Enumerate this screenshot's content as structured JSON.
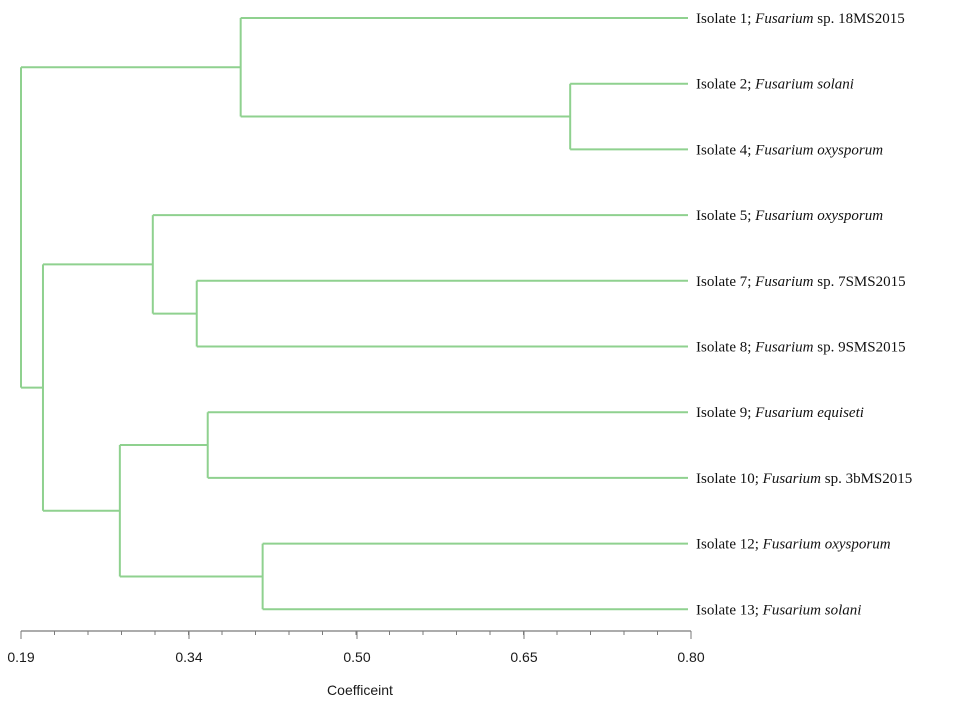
{
  "chart_data": {
    "type": "dendrogram",
    "xlabel": "Coefficeint",
    "xlim": [
      0.19,
      0.8
    ],
    "ticks": [
      {
        "value": 0.19,
        "label": "0.19"
      },
      {
        "value": 0.34,
        "label": "0.34"
      },
      {
        "value": 0.5,
        "label": "0.50"
      },
      {
        "value": 0.65,
        "label": "0.65"
      },
      {
        "value": 0.8,
        "label": "0.80"
      }
    ],
    "leaves": [
      {
        "prefix": "Isolate 1; ",
        "genus": "Fusarium",
        "suffix": " sp. 18MS2015"
      },
      {
        "prefix": "Isolate 2; ",
        "genus": "Fusarium solani",
        "suffix": ""
      },
      {
        "prefix": "Isolate 4; ",
        "genus": "Fusarium oxysporum",
        "suffix": ""
      },
      {
        "prefix": "Isolate 5; ",
        "genus": "Fusarium oxysporum",
        "suffix": ""
      },
      {
        "prefix": "Isolate 7; ",
        "genus": "Fusarium",
        "suffix": " sp. 7SMS2015"
      },
      {
        "prefix": "Isolate 8; ",
        "genus": "Fusarium",
        "suffix": " sp. 9SMS2015"
      },
      {
        "prefix": "Isolate 9; ",
        "genus": "Fusarium equiseti",
        "suffix": ""
      },
      {
        "prefix": "Isolate 10; ",
        "genus": "Fusarium",
        "suffix": " sp. 3bMS2015"
      },
      {
        "prefix": "Isolate 12; ",
        "genus": "Fusarium oxysporum",
        "suffix": ""
      },
      {
        "prefix": "Isolate 13; ",
        "genus": "Fusarium solani",
        "suffix": ""
      }
    ],
    "tree": {
      "height": 0.19,
      "children": [
        {
          "height": 0.39,
          "children": [
            {
              "leaf": 0
            },
            {
              "height": 0.69,
              "children": [
                {
                  "leaf": 1
                },
                {
                  "leaf": 2
                }
              ]
            }
          ]
        },
        {
          "height": 0.21,
          "children": [
            {
              "height": 0.31,
              "children": [
                {
                  "leaf": 3
                },
                {
                  "height": 0.35,
                  "children": [
                    {
                      "leaf": 4
                    },
                    {
                      "leaf": 5
                    }
                  ]
                }
              ]
            },
            {
              "height": 0.28,
              "children": [
                {
                  "height": 0.36,
                  "children": [
                    {
                      "leaf": 6
                    },
                    {
                      "leaf": 7
                    }
                  ]
                },
                {
                  "height": 0.41,
                  "children": [
                    {
                      "leaf": 8
                    },
                    {
                      "leaf": 9
                    }
                  ]
                }
              ]
            }
          ]
        }
      ]
    }
  }
}
